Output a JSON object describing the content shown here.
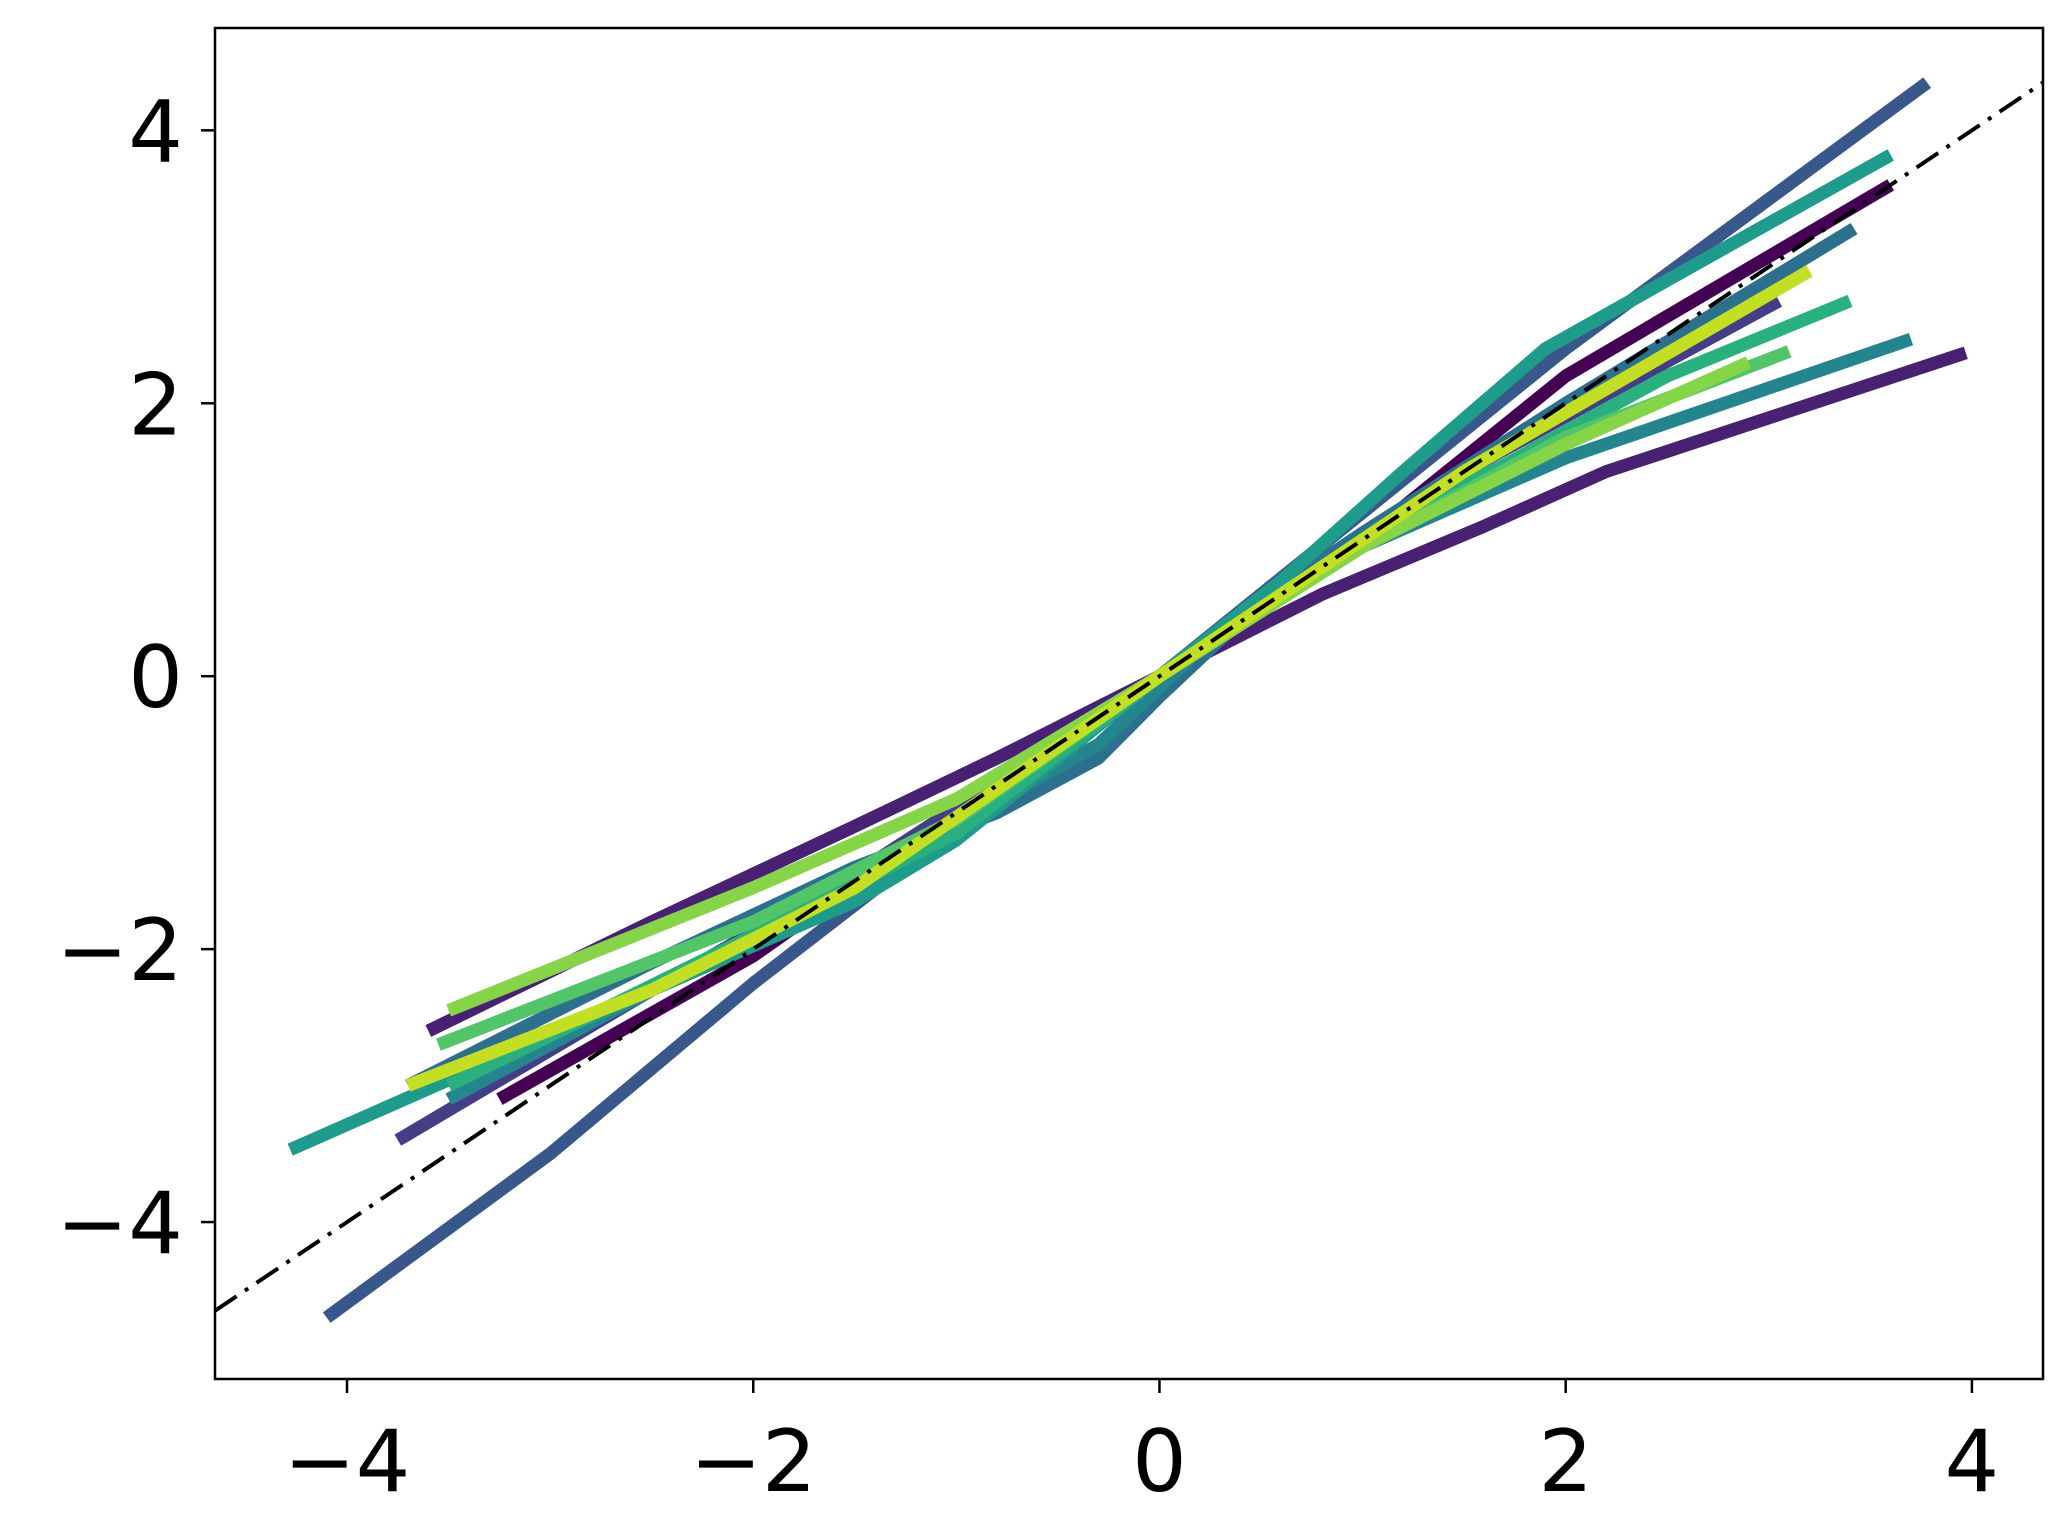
{
  "chart_data": {
    "type": "line",
    "title": "",
    "xlabel": "",
    "ylabel": "",
    "xlim": [
      -4.65,
      4.35
    ],
    "ylim": [
      -5.15,
      4.75
    ],
    "x_ticks": [
      -4,
      -2,
      0,
      2,
      4
    ],
    "y_ticks": [
      -4,
      -2,
      0,
      2,
      4
    ],
    "x_tick_labels": [
      "−4",
      "−2",
      "0",
      "2",
      "4"
    ],
    "y_tick_labels": [
      "−4",
      "−2",
      "0",
      "2",
      "4"
    ],
    "grid": false,
    "reference_line": {
      "style": "dash-dot",
      "color": "#000000",
      "x": [
        -4.65,
        4.35
      ],
      "y": [
        -4.65,
        4.35
      ]
    },
    "series": [
      {
        "color": "#440154",
        "x": [
          -3.25,
          -2.0,
          -1.0,
          0.0,
          1.0,
          2.0,
          3.6
        ],
        "y": [
          -3.1,
          -2.05,
          -1.0,
          0.0,
          1.0,
          2.2,
          3.6
        ]
      },
      {
        "color": "#482173",
        "x": [
          -3.6,
          -2.5,
          -1.5,
          -0.8,
          0.0,
          0.8,
          1.6,
          2.2,
          3.97
        ],
        "y": [
          -2.6,
          -1.8,
          -1.1,
          -0.6,
          0.0,
          0.6,
          1.1,
          1.5,
          2.37
        ]
      },
      {
        "color": "#433e85",
        "x": [
          -3.75,
          -2.5,
          -1.5,
          0.0,
          1.5,
          3.05
        ],
        "y": [
          -3.4,
          -2.3,
          -1.45,
          0.0,
          1.5,
          2.75
        ]
      },
      {
        "color": "#38588c",
        "x": [
          -4.1,
          -3.0,
          -2.0,
          -1.0,
          0.0,
          1.0,
          2.0,
          3.78
        ],
        "y": [
          -4.7,
          -3.5,
          -2.25,
          -1.1,
          0.0,
          1.2,
          2.4,
          4.35
        ]
      },
      {
        "color": "#2d708e",
        "x": [
          -3.7,
          -2.5,
          -1.5,
          -0.8,
          -0.3,
          0.0,
          0.5,
          1.0,
          2.0,
          3.42
        ],
        "y": [
          -3.0,
          -2.1,
          -1.4,
          -1.0,
          -0.6,
          -0.15,
          0.55,
          1.05,
          2.0,
          3.28
        ]
      },
      {
        "color": "#25858e",
        "x": [
          -3.5,
          -2.5,
          -1.5,
          -0.9,
          -0.3,
          0.2,
          0.6,
          1.0,
          2.0,
          3.7
        ],
        "y": [
          -3.1,
          -2.3,
          -1.55,
          -1.0,
          -0.5,
          0.2,
          0.6,
          0.95,
          1.6,
          2.47
        ]
      },
      {
        "color": "#1e9b8a",
        "x": [
          -4.28,
          -2.5,
          -1.5,
          -1.0,
          0.0,
          0.6,
          1.2,
          1.9,
          3.6
        ],
        "y": [
          -3.47,
          -2.3,
          -1.65,
          -1.2,
          0.0,
          0.7,
          1.5,
          2.4,
          3.82
        ]
      },
      {
        "color": "#2ab07f",
        "x": [
          -3.5,
          -2.0,
          -1.0,
          0.0,
          1.3,
          1.7,
          2.5,
          3.4
        ],
        "y": [
          -3.0,
          -1.9,
          -1.15,
          0.0,
          1.25,
          1.55,
          2.2,
          2.75
        ]
      },
      {
        "color": "#52c569",
        "x": [
          -3.55,
          -2.0,
          -1.0,
          0.0,
          1.0,
          2.0,
          3.1
        ],
        "y": [
          -2.7,
          -1.8,
          -1.05,
          0.0,
          0.95,
          1.75,
          2.38
        ]
      },
      {
        "color": "#86d549",
        "x": [
          -3.5,
          -2.0,
          -1.0,
          0.0,
          1.0,
          2.0,
          2.9
        ],
        "y": [
          -2.45,
          -1.55,
          -0.9,
          0.0,
          0.95,
          1.7,
          2.3
        ]
      },
      {
        "color": "#c2df23",
        "x": [
          -3.7,
          -2.5,
          -1.5,
          0.0,
          1.5,
          3.2
        ],
        "y": [
          -3.0,
          -2.3,
          -1.55,
          0.0,
          1.5,
          2.97
        ]
      }
    ]
  }
}
